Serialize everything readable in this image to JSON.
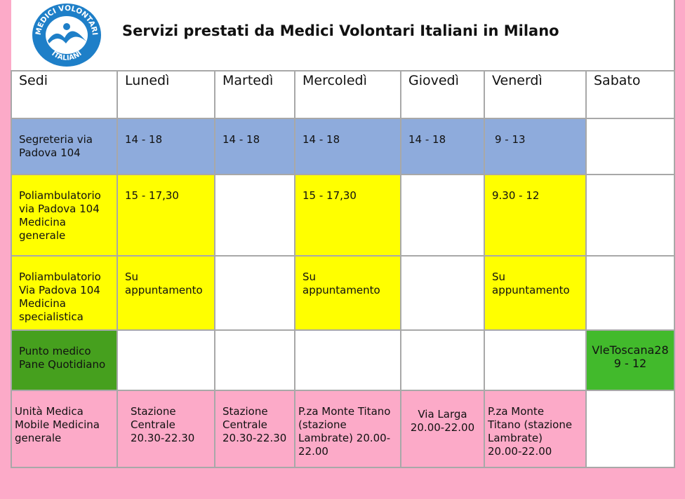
{
  "title": "Servizi prestati da Medici Volontari Italiani in Milano",
  "logo": {
    "top_text": "MEDICI VOLONTARI",
    "bottom_text": "ITALIANI",
    "color": "#1e7fc8"
  },
  "colors": {
    "background": "#fcaac8",
    "segreteria": "#8eabdc",
    "poliambulatorio": "#ffff00",
    "punto_medico": "#46a01e",
    "sabato_toscana": "#42ba2c",
    "unita_medica": "#fcaac8"
  },
  "headers": [
    "Sedi",
    "Lunedì",
    "Martedì",
    "Mercoledì",
    "Giovedì",
    "Venerdì",
    "Sabato"
  ],
  "rows": [
    {
      "sede": "Segreteria via Padova 104",
      "cells": [
        "14 - 18",
        "14 - 18",
        "14 - 18",
        "14 - 18",
        "9 - 13",
        ""
      ]
    },
    {
      "sede": "Poliambulatorio via Padova 104 Medicina generale",
      "cells": [
        "15 - 17,30",
        "",
        "15 - 17,30",
        "",
        "9.30 - 12",
        ""
      ]
    },
    {
      "sede": "Poliambulatorio Via Padova 104 Medicina specialistica",
      "cells": [
        "Su appuntamento",
        "",
        "Su appuntamento",
        "",
        "Su appuntamento",
        ""
      ]
    },
    {
      "sede": "Punto medico Pane Quotidiano",
      "cells": [
        "",
        "",
        "",
        "",
        "",
        "VleToscana28 9 - 12"
      ]
    },
    {
      "sede": "Unità Medica Mobile Medicina generale",
      "cells": [
        "Stazione Centrale 20.30-22.30",
        "Stazione Centrale 20.30-22.30",
        "P.za Monte Titano (stazione Lambrate) 20.00-22.00",
        "Via Larga 20.00-22.00",
        "P.za Monte Titano (stazione Lambrate) 20.00-22.00",
        ""
      ]
    }
  ]
}
